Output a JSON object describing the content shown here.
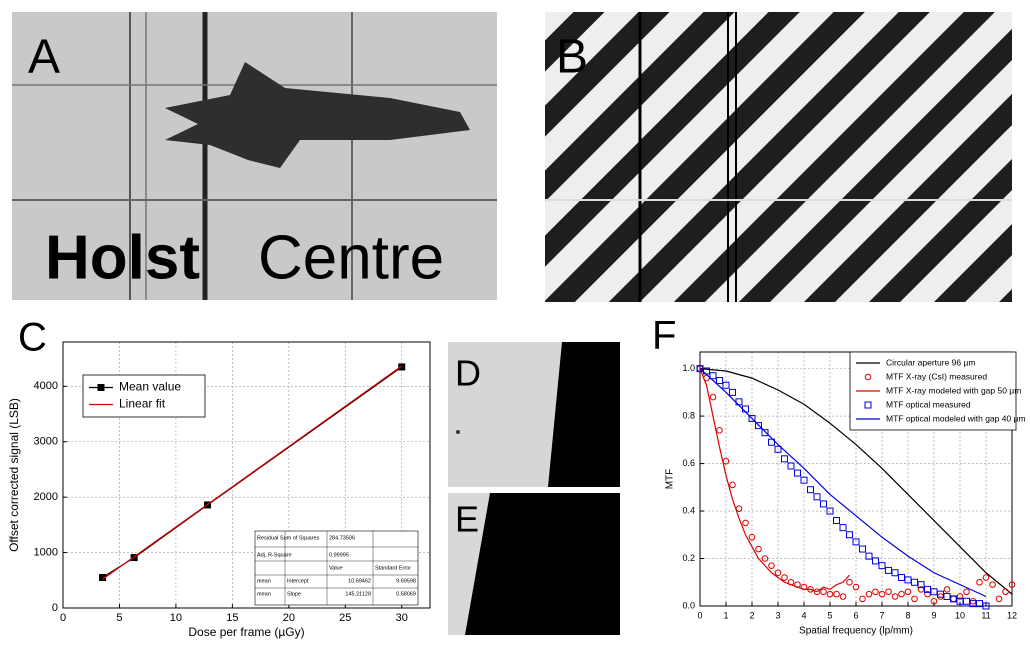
{
  "panels": {
    "a": {
      "label": "A",
      "text": [
        "Holst",
        "Centre"
      ]
    },
    "b": {
      "label": "B"
    },
    "c": {
      "label": "C"
    },
    "d": {
      "label": "D"
    },
    "e": {
      "label": "E"
    },
    "f": {
      "label": "F"
    }
  },
  "chart_data": [
    {
      "type": "line",
      "x_label": "Dose per frame (µGy)",
      "y_label": "Offset corrected signal (LSB)",
      "xlim": [
        0,
        32.5
      ],
      "xticks": [
        0,
        5,
        10,
        15,
        20,
        25,
        30
      ],
      "ylim": [
        0,
        4800
      ],
      "yticks": [
        0,
        1000,
        2000,
        3000,
        4000
      ],
      "grid": true,
      "legend": "upper left",
      "series": [
        {
          "name": "Mean value",
          "color": "#000000",
          "marker": "square",
          "line": true,
          "x": [
            3.5,
            6.3,
            12.8,
            30
          ],
          "values": [
            550,
            910,
            1860,
            4350
          ]
        },
        {
          "name": "Linear fit",
          "color": "#e00000",
          "marker": "none",
          "line": true,
          "x": [
            3.5,
            6.3,
            12.8,
            30
          ],
          "values": [
            519,
            925,
            1869,
            4367
          ]
        }
      ],
      "fit_table": {
        "stats": [
          [
            "Residual Sum of Squares",
            "284.73506"
          ],
          [
            "Adj. R-Square",
            "0.99995"
          ]
        ],
        "header": [
          "Value",
          "Standard Error"
        ],
        "rows": [
          [
            "mean",
            "Intercept",
            "10.69462",
            "9.69598"
          ],
          [
            "mean",
            "Slope",
            "145.21128",
            "0.58069"
          ]
        ]
      }
    },
    {
      "type": "line",
      "x_label": "Spatial frequency (lp/mm)",
      "y_label": "MTF",
      "xlim": [
        0,
        12
      ],
      "xticks": [
        0,
        1,
        2,
        3,
        4,
        5,
        6,
        7,
        8,
        9,
        10,
        11,
        12
      ],
      "ylim": [
        0,
        1.07
      ],
      "yticks": [
        {
          "value": 0,
          "label": "0.0"
        },
        0.2,
        0.4,
        0.6,
        0.8,
        {
          "value": 1,
          "label": "1.0"
        }
      ],
      "grid": true,
      "legend": "upper right",
      "series": [
        {
          "name": "Circular aperture 96 µm",
          "color": "#000000",
          "marker": "none",
          "line": true,
          "x": [
            0,
            1,
            2,
            3,
            4,
            5,
            6,
            7,
            8,
            9,
            10,
            11,
            12
          ],
          "values": [
            1.0,
            0.99,
            0.96,
            0.91,
            0.85,
            0.77,
            0.68,
            0.58,
            0.47,
            0.36,
            0.25,
            0.14,
            0.05
          ]
        },
        {
          "name": "MTF X-ray (CsI) measured",
          "color": "#e00000",
          "marker": "circle",
          "line": false,
          "x": [
            0,
            0.25,
            0.5,
            0.75,
            1,
            1.25,
            1.5,
            1.75,
            2,
            2.25,
            2.5,
            2.75,
            3,
            3.25,
            3.5,
            3.75,
            4,
            4.25,
            4.5,
            4.75,
            5,
            5.25,
            5.5,
            5.75,
            6,
            6.25,
            6.5,
            6.75,
            7,
            7.25,
            7.5,
            7.75,
            8,
            8.25,
            8.5,
            8.75,
            9,
            9.25,
            9.5,
            9.75,
            10,
            10.25,
            10.5,
            10.75,
            11,
            11.25,
            11.5,
            11.75,
            12
          ],
          "values": [
            1.0,
            0.96,
            0.88,
            0.74,
            0.61,
            0.51,
            0.41,
            0.35,
            0.29,
            0.24,
            0.2,
            0.17,
            0.14,
            0.12,
            0.1,
            0.09,
            0.08,
            0.07,
            0.06,
            0.06,
            0.05,
            0.05,
            0.04,
            0.1,
            0.08,
            0.03,
            0.05,
            0.06,
            0.05,
            0.06,
            0.04,
            0.05,
            0.06,
            0.03,
            0.07,
            0.05,
            0.02,
            0.04,
            0.07,
            0.03,
            0.04,
            0.06,
            0.02,
            0.1,
            0.12,
            0.09,
            0.03,
            0.06,
            0.09
          ]
        },
        {
          "name": "MTF X-ray modeled with gap 50 µm",
          "color": "#e00000",
          "marker": "none",
          "line": true,
          "x": [
            0,
            0.25,
            0.5,
            0.75,
            1,
            1.25,
            1.5,
            1.75,
            2,
            2.25,
            2.5,
            2.75,
            3,
            3.25,
            3.5,
            3.75,
            4,
            4.25,
            4.5,
            4.75,
            5,
            5.25,
            5.5,
            5.75
          ],
          "values": [
            1.0,
            0.93,
            0.8,
            0.67,
            0.55,
            0.45,
            0.37,
            0.3,
            0.25,
            0.2,
            0.17,
            0.14,
            0.12,
            0.1,
            0.09,
            0.08,
            0.07,
            0.07,
            0.06,
            0.08,
            0.07,
            0.09,
            0.1,
            0.13
          ]
        },
        {
          "name": "MTF optical measured",
          "color": "#0000e0",
          "marker": "square",
          "line": false,
          "x": [
            0,
            0.25,
            0.5,
            0.75,
            1,
            1.25,
            1.5,
            1.75,
            2,
            2.25,
            2.5,
            2.75,
            3,
            3.25,
            3.5,
            3.75,
            4,
            4.25,
            4.5,
            4.75,
            5,
            5.25,
            5.5,
            5.75,
            6,
            6.25,
            6.5,
            6.75,
            7,
            7.25,
            7.5,
            7.75,
            8,
            8.25,
            8.5,
            8.75,
            9,
            9.25,
            9.5,
            9.75,
            10,
            10.25,
            10.5,
            10.75,
            11
          ],
          "values": [
            1.0,
            0.99,
            0.97,
            0.95,
            0.93,
            0.9,
            0.86,
            0.83,
            0.79,
            0.76,
            0.73,
            0.69,
            0.66,
            0.62,
            0.59,
            0.56,
            0.53,
            0.49,
            0.46,
            0.43,
            0.4,
            0.36,
            0.33,
            0.3,
            0.27,
            0.24,
            0.21,
            0.19,
            0.17,
            0.15,
            0.14,
            0.12,
            0.11,
            0.1,
            0.09,
            0.07,
            0.06,
            0.05,
            0.04,
            0.03,
            0.02,
            0.02,
            0.01,
            0.01,
            0.0
          ]
        },
        {
          "name": "MTF optical modeled with gap 40 µm",
          "color": "#0000e0",
          "marker": "none",
          "line": true,
          "x": [
            0,
            1,
            2,
            3,
            4,
            5,
            6,
            7,
            8,
            9,
            10,
            11
          ],
          "values": [
            1.0,
            0.9,
            0.79,
            0.68,
            0.58,
            0.47,
            0.38,
            0.29,
            0.21,
            0.14,
            0.09,
            0.04
          ]
        }
      ]
    }
  ]
}
